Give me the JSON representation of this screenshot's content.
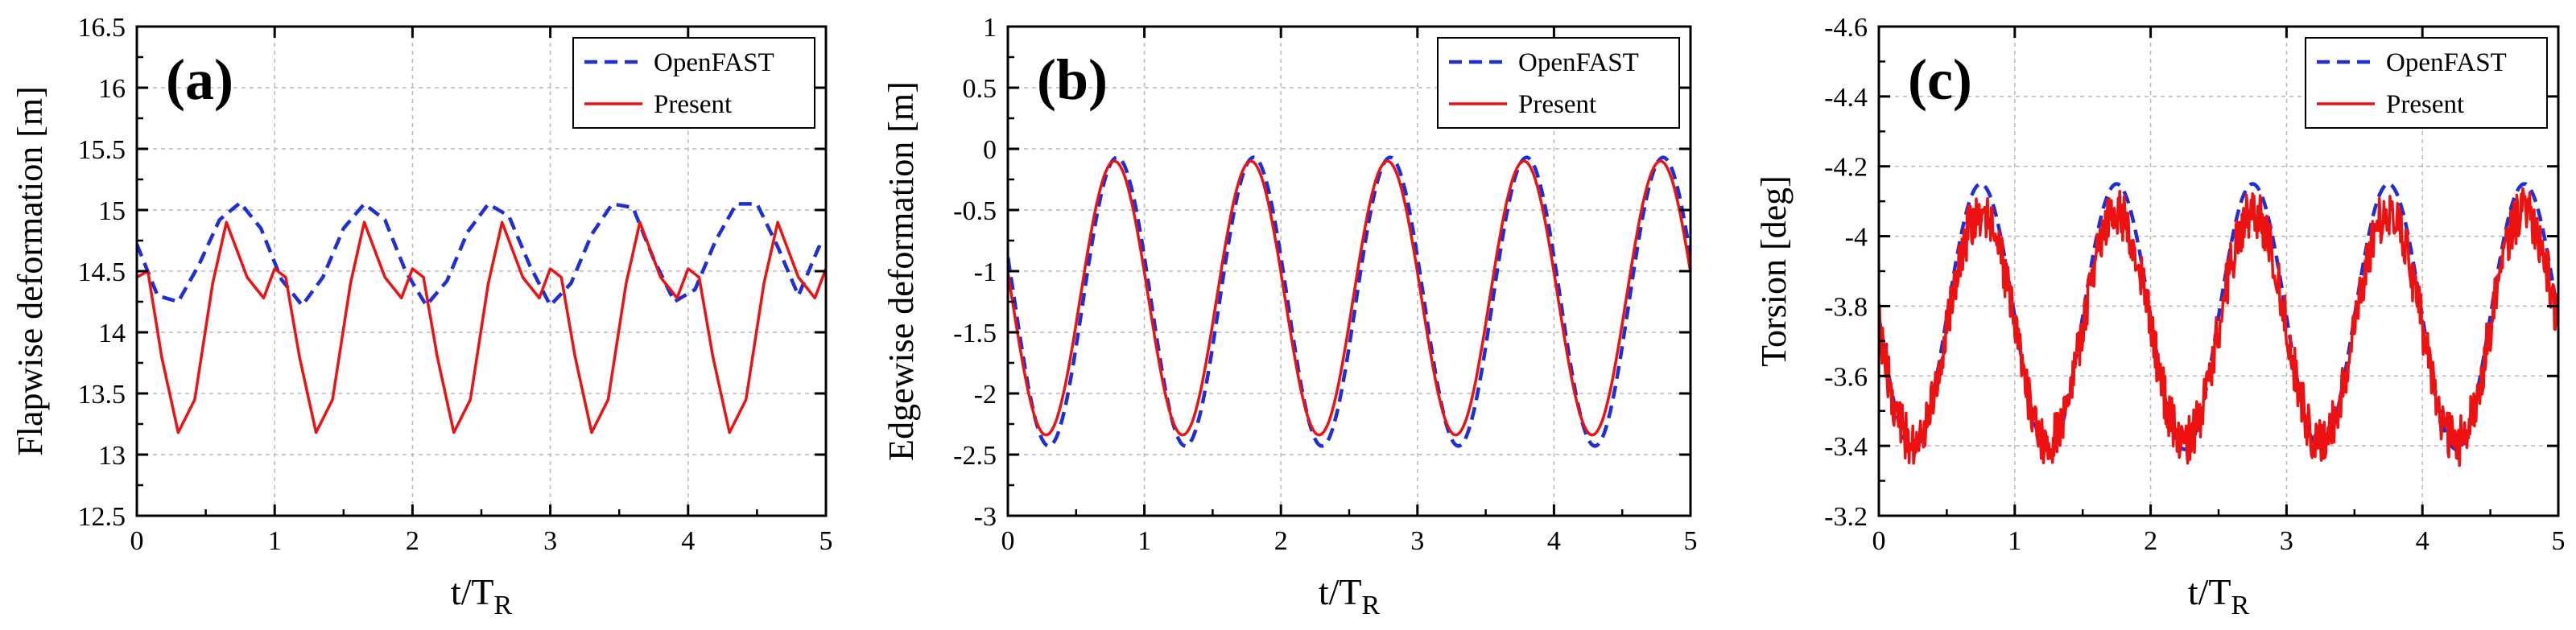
{
  "figure": {
    "panels": [
      "(a)",
      "(b)",
      "(c)"
    ],
    "legend": {
      "series_1": "OpenFAST",
      "series_2": "Present"
    }
  },
  "colors": {
    "openfast": "#1f2fd6",
    "present": "#ee1111",
    "grid": "#b8b8b8",
    "axis": "#000000"
  },
  "chart_data": [
    {
      "type": "line",
      "panel_label": "(a)",
      "xlabel": "t/T",
      "xlabel_sub": "R",
      "ylabel": "Flapwise deformation [m]",
      "xlim": [
        0,
        5
      ],
      "ylim": [
        12.5,
        16.5
      ],
      "inverted_y": false,
      "x_ticks": [
        0,
        1,
        2,
        3,
        4,
        5
      ],
      "x_tick_labels": [
        "0",
        "1",
        "2",
        "3",
        "4",
        "5"
      ],
      "y_ticks": [
        12.5,
        13,
        13.5,
        14,
        14.5,
        15,
        15.5,
        16,
        16.5
      ],
      "y_tick_labels": [
        "12.5",
        "13",
        "13.5",
        "14",
        "14.5",
        "15",
        "15.5",
        "16",
        "16.5"
      ],
      "grid": true,
      "legend_position": "top-right",
      "series": [
        {
          "name": "OpenFAST",
          "style": "dashed",
          "x": [
            0,
            0.15,
            0.3,
            0.45,
            0.6,
            0.75,
            0.9,
            1.05,
            1.2,
            1.35,
            1.5,
            1.65,
            1.8,
            1.95,
            2.1,
            2.25,
            2.4,
            2.55,
            2.7,
            2.85,
            3.0,
            3.15,
            3.3,
            3.45,
            3.6,
            3.75,
            3.9,
            4.05,
            4.2,
            4.35,
            4.5,
            4.65,
            4.8,
            4.95,
            5.0
          ],
          "y": [
            14.72,
            14.3,
            14.25,
            14.55,
            14.92,
            15.06,
            14.85,
            14.43,
            14.22,
            14.45,
            14.85,
            15.05,
            14.92,
            14.5,
            14.22,
            14.42,
            14.82,
            15.05,
            14.95,
            14.55,
            14.22,
            14.4,
            14.8,
            15.05,
            15.02,
            14.6,
            14.25,
            14.35,
            14.75,
            15.05,
            15.05,
            14.7,
            14.3,
            14.7,
            14.65
          ]
        },
        {
          "name": "Present",
          "style": "solid",
          "x": [
            0,
            0.08,
            0.18,
            0.3,
            0.42,
            0.55,
            0.65,
            0.8,
            0.92,
            1.0,
            1.08,
            1.18,
            1.3,
            1.42,
            1.55,
            1.65,
            1.8,
            1.92,
            2.0,
            2.08,
            2.18,
            2.3,
            2.42,
            2.55,
            2.65,
            2.8,
            2.92,
            3.0,
            3.08,
            3.18,
            3.3,
            3.42,
            3.55,
            3.65,
            3.8,
            3.92,
            4.0,
            4.08,
            4.18,
            4.3,
            4.42,
            4.55,
            4.65,
            4.8,
            4.92,
            5.0
          ],
          "y": [
            14.45,
            14.5,
            13.8,
            13.18,
            13.45,
            14.4,
            14.9,
            14.45,
            14.28,
            14.52,
            14.45,
            13.8,
            13.18,
            13.45,
            14.4,
            14.9,
            14.45,
            14.28,
            14.52,
            14.45,
            13.8,
            13.18,
            13.45,
            14.4,
            14.9,
            14.45,
            14.28,
            14.52,
            14.45,
            13.8,
            13.18,
            13.45,
            14.4,
            14.9,
            14.45,
            14.28,
            14.52,
            14.45,
            13.8,
            13.18,
            13.45,
            14.4,
            14.9,
            14.45,
            14.28,
            14.52
          ]
        }
      ]
    },
    {
      "type": "line",
      "panel_label": "(b)",
      "xlabel": "t/T",
      "xlabel_sub": "R",
      "ylabel": "Edgewise deformation [m]",
      "xlim": [
        0,
        5
      ],
      "ylim": [
        -3,
        1
      ],
      "inverted_y": false,
      "x_ticks": [
        0,
        1,
        2,
        3,
        4,
        5
      ],
      "x_tick_labels": [
        "0",
        "1",
        "2",
        "3",
        "4",
        "5"
      ],
      "y_ticks": [
        -3,
        -2.5,
        -2,
        -1.5,
        -1,
        -0.5,
        0,
        0.5,
        1
      ],
      "y_tick_labels": [
        "-3",
        "-2.5",
        "-2",
        "-1.5",
        "-1",
        "-0.5",
        "0",
        "0.5",
        "1"
      ],
      "grid": true,
      "legend_position": "top-right",
      "series": [
        {
          "name": "OpenFAST",
          "style": "dashed",
          "sine": {
            "mean": -1.25,
            "amplitude": 1.18,
            "crest": 0.8,
            "period": 1
          },
          "x_range": [
            0,
            5
          ]
        },
        {
          "name": "Present",
          "style": "solid",
          "sine": {
            "mean": -1.22,
            "amplitude": 1.12,
            "crest": 0.78,
            "period": 1
          },
          "x_range": [
            0,
            5
          ]
        }
      ]
    },
    {
      "type": "line",
      "panel_label": "(c)",
      "xlabel": "t/T",
      "xlabel_sub": "R",
      "ylabel": "Torsion [deg]",
      "xlim": [
        0,
        5
      ],
      "ylim": [
        -4.6,
        -3.2
      ],
      "inverted_y": true,
      "x_ticks": [
        0,
        1,
        2,
        3,
        4,
        5
      ],
      "x_tick_labels": [
        "0",
        "1",
        "2",
        "3",
        "4",
        "5"
      ],
      "y_ticks": [
        -4.6,
        -4.4,
        -4.2,
        -4,
        -3.8,
        -3.6,
        -3.4,
        -3.2
      ],
      "y_tick_labels": [
        "-4.6",
        "-4.4",
        "-4.2",
        "-4",
        "-3.8",
        "-3.6",
        "-3.4",
        "-3.2"
      ],
      "grid": true,
      "legend_position": "top-right",
      "series": [
        {
          "name": "OpenFAST",
          "style": "dashed",
          "sine": {
            "mean": -3.77,
            "amplitude": 0.38,
            "crest": 0.25,
            "period": 1
          },
          "x_range": [
            0,
            5
          ]
        },
        {
          "name": "Present",
          "style": "solid",
          "sine": {
            "mean": -3.74,
            "amplitude": 0.33,
            "crest": 0.25,
            "period": 1
          },
          "noise": 0.07,
          "x_range": [
            0,
            5
          ]
        }
      ]
    }
  ]
}
